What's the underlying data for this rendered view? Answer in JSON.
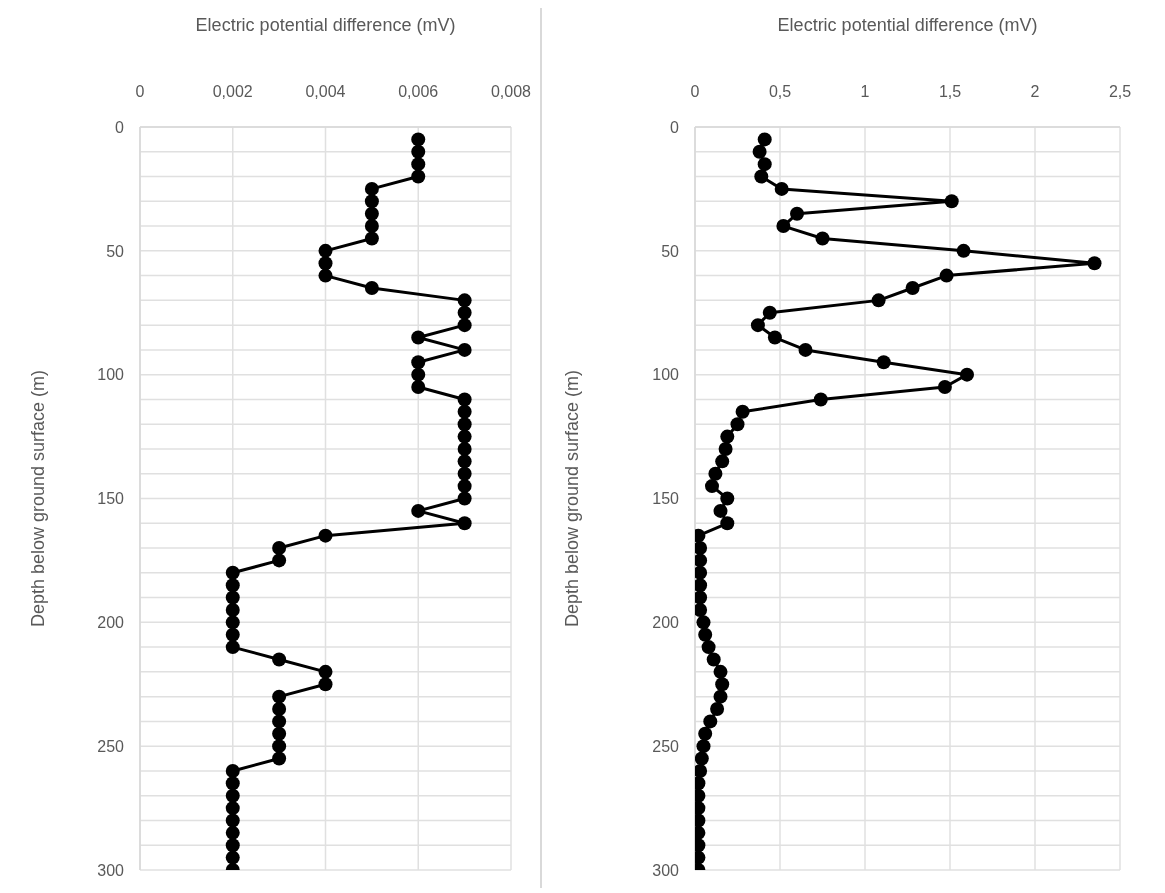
{
  "chart_data": [
    {
      "type": "line",
      "orientation": "horizontal",
      "xlabel": "Electric  potential difference (mV)",
      "ylabel": "Depth below ground surface (m)",
      "color": "#000000",
      "marker": "circle",
      "line_style": "solid",
      "grid": true,
      "x": [
        5,
        10,
        15,
        20,
        25,
        30,
        35,
        40,
        45,
        50,
        55,
        60,
        65,
        70,
        75,
        80,
        85,
        90,
        95,
        100,
        105,
        110,
        115,
        120,
        125,
        130,
        135,
        140,
        145,
        150,
        155,
        160,
        165,
        170,
        175,
        180,
        185,
        190,
        195,
        200,
        205,
        210,
        215,
        220,
        225,
        230,
        235,
        240,
        245,
        250,
        255,
        260,
        265,
        270,
        275,
        280,
        285,
        290,
        295,
        300
      ],
      "values": [
        0.006,
        0.006,
        0.006,
        0.006,
        0.005,
        0.005,
        0.005,
        0.005,
        0.005,
        0.004,
        0.004,
        0.004,
        0.005,
        0.007,
        0.007,
        0.007,
        0.006,
        0.007,
        0.006,
        0.006,
        0.006,
        0.007,
        0.007,
        0.007,
        0.007,
        0.007,
        0.007,
        0.007,
        0.007,
        0.007,
        0.006,
        0.007,
        0.004,
        0.003,
        0.003,
        0.002,
        0.002,
        0.002,
        0.002,
        0.002,
        0.002,
        0.002,
        0.003,
        0.004,
        0.004,
        0.003,
        0.003,
        0.003,
        0.003,
        0.003,
        0.003,
        0.002,
        0.002,
        0.002,
        0.002,
        0.002,
        0.002,
        0.002,
        0.002,
        0.002
      ],
      "xlim": [
        0,
        0.008
      ],
      "xticks": [
        0,
        {
          "value": 0.002,
          "label": "0,002"
        },
        {
          "value": 0.004,
          "label": "0,004"
        },
        {
          "value": 0.006,
          "label": "0,006"
        },
        {
          "value": 0.008,
          "label": "0,008"
        }
      ],
      "ylim": [
        300,
        0
      ],
      "yticks": [
        0,
        {
          "value": 10,
          "label": null
        },
        {
          "value": 20,
          "label": null
        },
        {
          "value": 30,
          "label": null
        },
        {
          "value": 40,
          "label": null
        },
        50,
        {
          "value": 60,
          "label": null
        },
        {
          "value": 70,
          "label": null
        },
        {
          "value": 80,
          "label": null
        },
        {
          "value": 90,
          "label": null
        },
        100,
        {
          "value": 110,
          "label": null
        },
        {
          "value": 120,
          "label": null
        },
        {
          "value": 130,
          "label": null
        },
        {
          "value": 140,
          "label": null
        },
        150,
        {
          "value": 160,
          "label": null
        },
        {
          "value": 170,
          "label": null
        },
        {
          "value": 180,
          "label": null
        },
        {
          "value": 190,
          "label": null
        },
        200,
        {
          "value": 210,
          "label": null
        },
        {
          "value": 220,
          "label": null
        },
        {
          "value": 230,
          "label": null
        },
        {
          "value": 240,
          "label": null
        },
        250,
        {
          "value": 260,
          "label": null
        },
        {
          "value": 270,
          "label": null
        },
        {
          "value": 280,
          "label": null
        },
        {
          "value": 290,
          "label": null
        },
        300
      ]
    },
    {
      "type": "line",
      "orientation": "horizontal",
      "xlabel": "Electric  potential difference (mV)",
      "ylabel": "Depth below ground surface (m)",
      "color": "#000000",
      "marker": "circle",
      "line_style": "solid",
      "grid": true,
      "x": [
        5,
        10,
        15,
        20,
        25,
        30,
        35,
        40,
        45,
        50,
        55,
        60,
        65,
        70,
        75,
        80,
        85,
        90,
        95,
        100,
        105,
        110,
        115,
        120,
        125,
        130,
        135,
        140,
        145,
        150,
        155,
        160,
        165,
        170,
        175,
        180,
        185,
        190,
        195,
        200,
        205,
        210,
        215,
        220,
        225,
        230,
        235,
        240,
        245,
        250,
        255,
        260,
        265,
        270,
        275,
        280,
        285,
        290,
        295,
        300
      ],
      "values": [
        0.41,
        0.38,
        0.41,
        0.39,
        0.51,
        1.51,
        0.6,
        0.52,
        0.75,
        1.58,
        2.35,
        1.48,
        1.28,
        1.08,
        0.44,
        0.37,
        0.47,
        0.65,
        1.11,
        1.6,
        1.47,
        0.74,
        0.28,
        0.25,
        0.19,
        0.18,
        0.16,
        0.12,
        0.1,
        0.19,
        0.15,
        0.19,
        0.02,
        0.03,
        0.03,
        0.03,
        0.03,
        0.03,
        0.03,
        0.05,
        0.06,
        0.08,
        0.11,
        0.15,
        0.16,
        0.15,
        0.13,
        0.09,
        0.06,
        0.05,
        0.04,
        0.03,
        0.02,
        0.02,
        0.02,
        0.02,
        0.02,
        0.02,
        0.02,
        0.02
      ],
      "xlim": [
        0,
        2.5
      ],
      "xticks": [
        0,
        {
          "value": 0.5,
          "label": "0,5"
        },
        1,
        {
          "value": 1.5,
          "label": "1,5"
        },
        2,
        {
          "value": 2.5,
          "label": "2,5"
        }
      ],
      "ylim": [
        300,
        0
      ],
      "yticks": [
        0,
        {
          "value": 10,
          "label": null
        },
        {
          "value": 20,
          "label": null
        },
        {
          "value": 30,
          "label": null
        },
        {
          "value": 40,
          "label": null
        },
        50,
        {
          "value": 60,
          "label": null
        },
        {
          "value": 70,
          "label": null
        },
        {
          "value": 80,
          "label": null
        },
        {
          "value": 90,
          "label": null
        },
        100,
        {
          "value": 110,
          "label": null
        },
        {
          "value": 120,
          "label": null
        },
        {
          "value": 130,
          "label": null
        },
        {
          "value": 140,
          "label": null
        },
        150,
        {
          "value": 160,
          "label": null
        },
        {
          "value": 170,
          "label": null
        },
        {
          "value": 180,
          "label": null
        },
        {
          "value": 190,
          "label": null
        },
        200,
        {
          "value": 210,
          "label": null
        },
        {
          "value": 220,
          "label": null
        },
        {
          "value": 230,
          "label": null
        },
        {
          "value": 240,
          "label": null
        },
        250,
        {
          "value": 260,
          "label": null
        },
        {
          "value": 270,
          "label": null
        },
        {
          "value": 280,
          "label": null
        },
        {
          "value": 290,
          "label": null
        },
        300
      ]
    }
  ]
}
